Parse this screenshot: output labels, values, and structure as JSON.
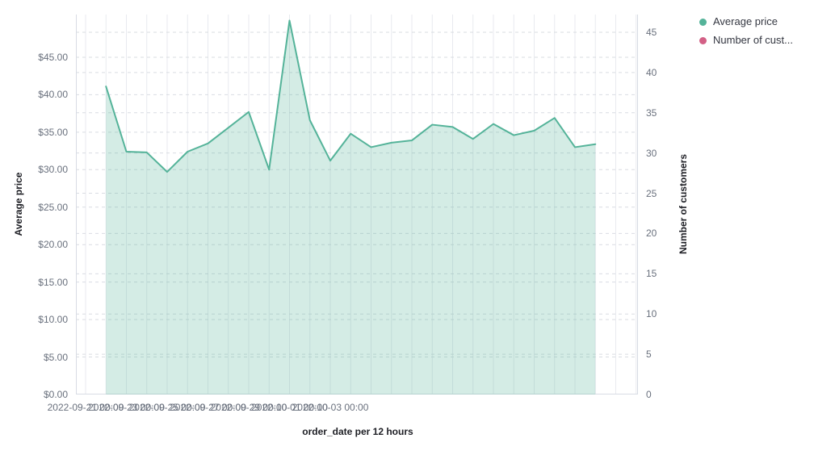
{
  "legend": {
    "items": [
      {
        "label": "Average price",
        "color": "#54B399"
      },
      {
        "label": "Number of cust...",
        "color": "#D36086"
      }
    ]
  },
  "chart_data": {
    "type": "area",
    "title": "",
    "x_axis": {
      "label": "order_date per 12 hours",
      "tick_labels": [
        "2022-09-21 00:00",
        "2022-09-23 00:00",
        "2022-09-25 00:00",
        "2022-09-27 00:00",
        "2022-09-29 00:00",
        "2022-10-01 00:00",
        "2022-10-03 00:00"
      ]
    },
    "y_axis_left": {
      "label": "Average price",
      "tick_values": [
        0,
        5,
        10,
        15,
        20,
        25,
        30,
        35,
        40,
        45
      ],
      "tick_labels": [
        "$0.00",
        "$5.00",
        "$10.00",
        "$15.00",
        "$20.00",
        "$25.00",
        "$30.00",
        "$35.00",
        "$40.00",
        "$45.00"
      ],
      "range": [
        0,
        50.7
      ]
    },
    "y_axis_right": {
      "label": "Number of customers",
      "tick_values": [
        0,
        5,
        10,
        15,
        20,
        25,
        30,
        35,
        40,
        45
      ],
      "tick_labels": [
        "0",
        "5",
        "10",
        "15",
        "20",
        "25",
        "30",
        "35",
        "40",
        "45"
      ],
      "range": [
        0,
        47.2
      ]
    },
    "grid": {
      "horizontal": true,
      "vertical": true
    },
    "legend_position": "right",
    "series": [
      {
        "name": "Average price",
        "axis": "left",
        "color": "#54B399",
        "fill": "rgba(84,179,153,0.25)",
        "x": [
          "2022-09-21 12:00",
          "2022-09-22 00:00",
          "2022-09-22 12:00",
          "2022-09-23 00:00",
          "2022-09-23 12:00",
          "2022-09-24 00:00",
          "2022-09-24 12:00",
          "2022-09-25 00:00",
          "2022-09-25 12:00",
          "2022-09-26 00:00",
          "2022-09-26 12:00",
          "2022-09-27 00:00",
          "2022-09-27 12:00",
          "2022-09-28 00:00",
          "2022-09-28 12:00",
          "2022-09-29 00:00",
          "2022-09-29 12:00",
          "2022-09-30 00:00",
          "2022-09-30 12:00",
          "2022-10-01 00:00",
          "2022-10-01 12:00",
          "2022-10-02 00:00",
          "2022-10-02 12:00",
          "2022-10-03 00:00",
          "2022-10-03 12:00"
        ],
        "values": [
          41.1,
          32.4,
          32.3,
          29.7,
          32.4,
          33.5,
          35.6,
          37.7,
          30.0,
          49.9,
          36.6,
          31.2,
          34.8,
          33.0,
          33.6,
          33.9,
          36.0,
          35.7,
          34.1,
          36.1,
          34.6,
          35.2,
          36.9,
          33.0,
          33.4
        ]
      },
      {
        "name": "Number of customers",
        "axis": "right",
        "color": "#D36086",
        "values": []
      }
    ],
    "colors": {
      "grid_vertical": "#e8eaef",
      "grid_horizontal": "#d9dce2",
      "axis_line": "#d8dce4"
    }
  }
}
